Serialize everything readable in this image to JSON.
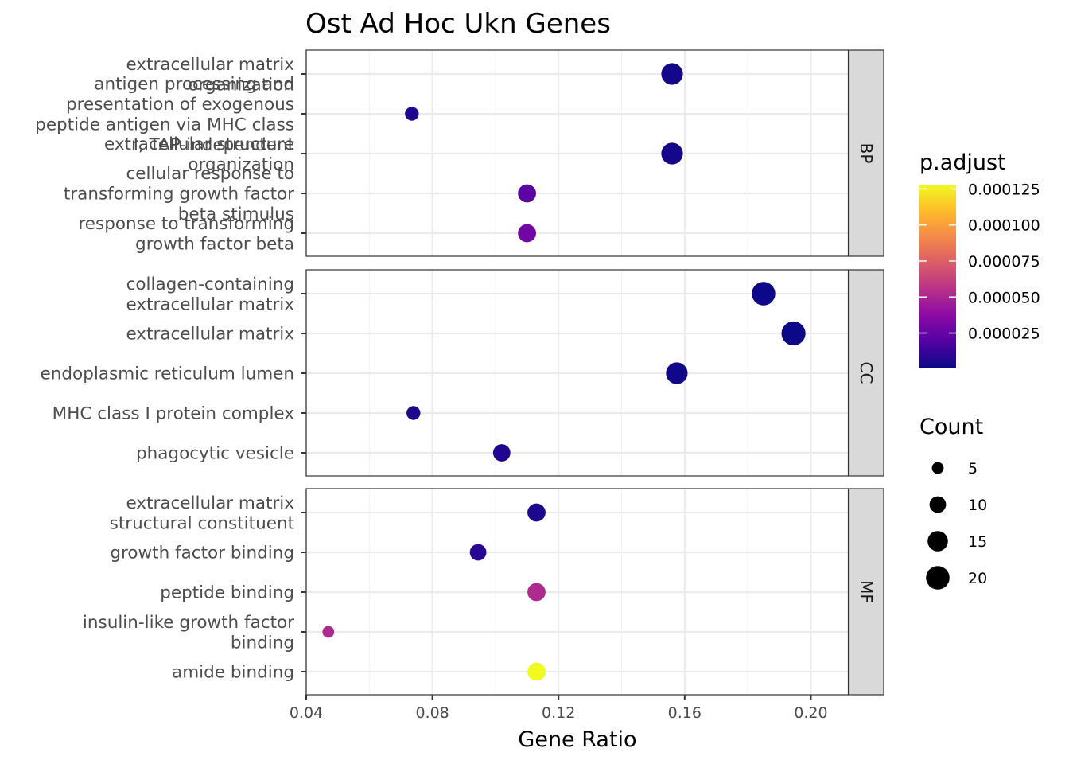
{
  "chart_data": {
    "type": "scatter",
    "title": "Ost Ad Hoc Ukn Genes",
    "xlabel": "Gene Ratio",
    "ylabel": "",
    "xlim": [
      0.04,
      0.212
    ],
    "x_ticks": [
      0.04,
      0.08,
      0.12,
      0.16,
      0.2
    ],
    "x_tick_labels": [
      "0.04",
      "0.08",
      "0.12",
      "0.16",
      "0.20"
    ],
    "grid": true,
    "facets": [
      {
        "name": "BP",
        "terms": [
          {
            "label": [
              "extracellular matrix",
              "organization"
            ],
            "gene_ratio": 0.156,
            "count": 17,
            "p_adjust": 3e-06
          },
          {
            "label": [
              "antigen processing and",
              "presentation of exogenous",
              "peptide antigen via MHC class",
              "I, TAP-independent"
            ],
            "gene_ratio": 0.0735,
            "count": 7,
            "p_adjust": 6e-06
          },
          {
            "label": [
              "extracellular structure",
              "organization"
            ],
            "gene_ratio": 0.156,
            "count": 17,
            "p_adjust": 3e-06
          },
          {
            "label": [
              "cellular response to",
              "transforming growth factor",
              "beta stimulus"
            ],
            "gene_ratio": 0.11,
            "count": 12,
            "p_adjust": 2.2e-05
          },
          {
            "label": [
              "response to transforming",
              "growth factor beta"
            ],
            "gene_ratio": 0.11,
            "count": 12,
            "p_adjust": 2.9e-05
          }
        ]
      },
      {
        "name": "CC",
        "terms": [
          {
            "label": [
              "collagen-containing",
              "extracellular matrix"
            ],
            "gene_ratio": 0.185,
            "count": 20,
            "p_adjust": 1e-06
          },
          {
            "label": [
              "extracellular matrix"
            ],
            "gene_ratio": 0.1945,
            "count": 21,
            "p_adjust": 1e-06
          },
          {
            "label": [
              "endoplasmic reticulum lumen"
            ],
            "gene_ratio": 0.1575,
            "count": 17,
            "p_adjust": 2e-06
          },
          {
            "label": [
              "MHC class I protein complex"
            ],
            "gene_ratio": 0.074,
            "count": 7,
            "p_adjust": 5e-06
          },
          {
            "label": [
              "phagocytic vesicle"
            ],
            "gene_ratio": 0.102,
            "count": 11,
            "p_adjust": 6e-06
          }
        ]
      },
      {
        "name": "MF",
        "terms": [
          {
            "label": [
              "extracellular matrix",
              "structural constituent"
            ],
            "gene_ratio": 0.113,
            "count": 12,
            "p_adjust": 5e-06
          },
          {
            "label": [
              "growth factor binding"
            ],
            "gene_ratio": 0.0945,
            "count": 10,
            "p_adjust": 8e-06
          },
          {
            "label": [
              "peptide binding"
            ],
            "gene_ratio": 0.113,
            "count": 12,
            "p_adjust": 5.2e-05
          },
          {
            "label": [
              "insulin-like growth factor",
              "binding"
            ],
            "gene_ratio": 0.047,
            "count": 5,
            "p_adjust": 5.2e-05
          },
          {
            "label": [
              "amide binding"
            ],
            "gene_ratio": 0.113,
            "count": 12,
            "p_adjust": 0.000128
          }
        ]
      }
    ],
    "legend_color": {
      "title": "p.adjust",
      "range": [
        1e-06,
        0.000128
      ],
      "breaks": [
        2.5e-05,
        5e-05,
        7.5e-05,
        0.0001,
        0.000125
      ],
      "break_labels": [
        "0.000025",
        "0.000050",
        "0.000075",
        "0.000100",
        "0.000125"
      ],
      "palette": [
        "#0d0887",
        "#5302a3",
        "#8b0aa5",
        "#b83289",
        "#db5c68",
        "#f48849",
        "#febc2a",
        "#f0f921"
      ]
    },
    "legend_size": {
      "title": "Count",
      "breaks": [
        5,
        10,
        15,
        20
      ],
      "break_labels": [
        "5",
        "10",
        "15",
        "20"
      ]
    },
    "legend_placement": "right"
  }
}
